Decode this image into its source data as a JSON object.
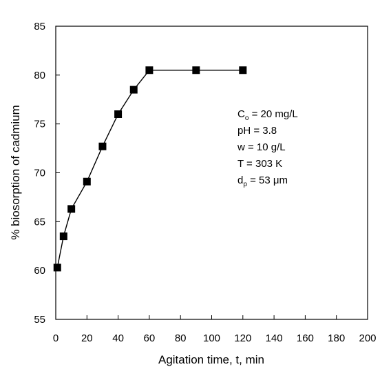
{
  "chart_data": {
    "type": "line",
    "title": "",
    "xlabel": "Agitation time, t, min",
    "ylabel": "% biosorption of cadmium",
    "xlim": [
      0,
      200
    ],
    "ylim": [
      55,
      85
    ],
    "xticks": [
      0,
      20,
      40,
      60,
      80,
      100,
      120,
      140,
      160,
      180,
      200
    ],
    "yticks": [
      55,
      60,
      65,
      70,
      75,
      80,
      85
    ],
    "grid": false,
    "marker": "square",
    "series": [
      {
        "x": [
          1,
          5,
          10,
          20,
          30,
          40,
          50,
          60,
          90,
          120
        ],
        "y": [
          60.3,
          63.5,
          66.3,
          69.1,
          72.7,
          76.0,
          78.5,
          80.5,
          80.5,
          80.5
        ]
      }
    ],
    "annotations": [
      {
        "base": "C",
        "sub": "o",
        "rest": " = 20 mg/L"
      },
      {
        "base": "pH = 3.8",
        "sub": "",
        "rest": ""
      },
      {
        "base": "w = 10 g/L",
        "sub": "",
        "rest": ""
      },
      {
        "base": "T = 303 K",
        "sub": "",
        "rest": ""
      },
      {
        "base": "d",
        "sub": "p",
        "rest": " = 53 μm"
      }
    ]
  }
}
